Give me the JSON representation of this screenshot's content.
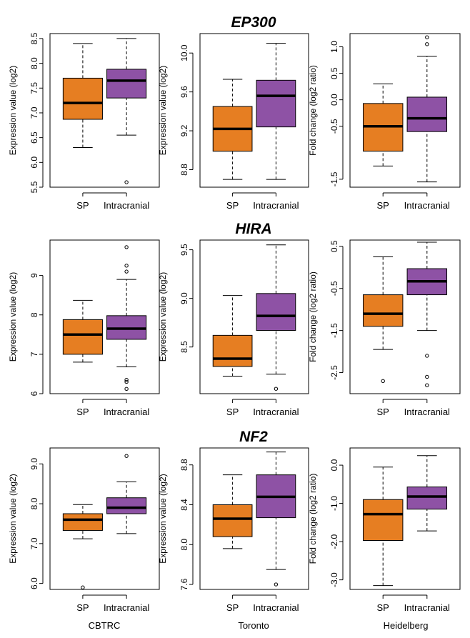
{
  "colors": {
    "sp": "#E67E22",
    "intracranial": "#8E52A5"
  },
  "figure": {
    "row_titles": [
      "EP300",
      "HIRA",
      "NF2"
    ],
    "column_labels": [
      "CBTRC",
      "Toronto",
      "Heidelberg"
    ]
  },
  "chart_data": [
    {
      "type": "box",
      "gene": "EP300",
      "dataset": "CBTRC",
      "ylabel": "Expression value (log2)",
      "ylim": [
        5.5,
        8.6
      ],
      "yticks": [
        "5.5",
        "6.0",
        "6.5",
        "7.0",
        "7.5",
        "8.0",
        "8.5"
      ],
      "categories": [
        "SP",
        "Intracranial"
      ],
      "boxes": [
        {
          "whisker_low": 6.3,
          "q1": 6.87,
          "median": 7.2,
          "q3": 7.7,
          "whisker_high": 8.4,
          "outliers": []
        },
        {
          "whisker_low": 6.55,
          "q1": 7.3,
          "median": 7.65,
          "q3": 7.88,
          "whisker_high": 8.5,
          "outliers": [
            5.6
          ]
        }
      ]
    },
    {
      "type": "box",
      "gene": "EP300",
      "dataset": "Toronto",
      "ylabel": "Expression value (log2)",
      "ylim": [
        8.62,
        10.2
      ],
      "yticks": [
        "8.8",
        "9.2",
        "9.6",
        "10.0"
      ],
      "categories": [
        "SP",
        "Intracranial"
      ],
      "boxes": [
        {
          "whisker_low": 8.7,
          "q1": 8.99,
          "median": 9.22,
          "q3": 9.45,
          "whisker_high": 9.73,
          "outliers": []
        },
        {
          "whisker_low": 8.7,
          "q1": 9.24,
          "median": 9.56,
          "q3": 9.72,
          "whisker_high": 10.1,
          "outliers": []
        }
      ]
    },
    {
      "type": "box",
      "gene": "EP300",
      "dataset": "Heidelberg",
      "ylabel": "Fold change (log2 ratio)",
      "ylim": [
        -1.65,
        1.25
      ],
      "yticks": [
        "-1.5",
        "-0.5",
        "0.0",
        "0.5",
        "1.0"
      ],
      "categories": [
        "SP",
        "Intracranial"
      ],
      "boxes": [
        {
          "whisker_low": -1.25,
          "q1": -0.97,
          "median": -0.5,
          "q3": -0.07,
          "whisker_high": 0.3,
          "outliers": []
        },
        {
          "whisker_low": -1.55,
          "q1": -0.6,
          "median": -0.35,
          "q3": 0.05,
          "whisker_high": 0.82,
          "outliers": [
            1.05,
            1.18
          ]
        }
      ]
    },
    {
      "type": "box",
      "gene": "HIRA",
      "dataset": "CBTRC",
      "ylabel": "Expression value (log2)",
      "ylim": [
        6.0,
        9.9
      ],
      "yticks": [
        "6",
        "7",
        "8",
        "9"
      ],
      "categories": [
        "SP",
        "Intracranial"
      ],
      "boxes": [
        {
          "whisker_low": 6.8,
          "q1": 7.0,
          "median": 7.5,
          "q3": 7.88,
          "whisker_high": 8.37,
          "outliers": []
        },
        {
          "whisker_low": 6.68,
          "q1": 7.38,
          "median": 7.65,
          "q3": 7.98,
          "whisker_high": 8.9,
          "outliers": [
            9.72,
            9.25,
            9.1,
            6.35,
            6.3,
            6.12
          ]
        }
      ]
    },
    {
      "type": "box",
      "gene": "HIRA",
      "dataset": "Toronto",
      "ylabel": "Expression value (log2)",
      "ylim": [
        8.02,
        9.6
      ],
      "yticks": [
        "8.5",
        "9.0",
        "9.5"
      ],
      "categories": [
        "SP",
        "Intracranial"
      ],
      "boxes": [
        {
          "whisker_low": 8.2,
          "q1": 8.3,
          "median": 8.38,
          "q3": 8.62,
          "whisker_high": 9.03,
          "outliers": []
        },
        {
          "whisker_low": 8.22,
          "q1": 8.67,
          "median": 8.82,
          "q3": 9.05,
          "whisker_high": 9.55,
          "outliers": [
            8.07
          ]
        }
      ]
    },
    {
      "type": "box",
      "gene": "HIRA",
      "dataset": "Heidelberg",
      "ylabel": "Fold change (log2 ratio)",
      "ylim": [
        -3.0,
        0.65
      ],
      "yticks": [
        "-2.5",
        "-1.5",
        "-0.5",
        "0.5"
      ],
      "categories": [
        "SP",
        "Intracranial"
      ],
      "boxes": [
        {
          "whisker_low": -1.95,
          "q1": -1.4,
          "median": -1.1,
          "q3": -0.65,
          "whisker_high": 0.25,
          "outliers": [
            -2.7
          ]
        },
        {
          "whisker_low": -1.5,
          "q1": -0.65,
          "median": -0.33,
          "q3": -0.03,
          "whisker_high": 0.6,
          "outliers": [
            -2.1,
            -2.6,
            -2.8
          ]
        }
      ]
    },
    {
      "type": "box",
      "gene": "NF2",
      "dataset": "CBTRC",
      "ylabel": "Expression value (log2)",
      "ylim": [
        5.85,
        9.4
      ],
      "yticks": [
        "6.0",
        "7.0",
        "8.0",
        "9.0"
      ],
      "categories": [
        "SP",
        "Intracranial"
      ],
      "boxes": [
        {
          "whisker_low": 7.12,
          "q1": 7.33,
          "median": 7.6,
          "q3": 7.75,
          "whisker_high": 7.98,
          "outliers": [
            5.9
          ]
        },
        {
          "whisker_low": 7.25,
          "q1": 7.75,
          "median": 7.9,
          "q3": 8.15,
          "whisker_high": 8.55,
          "outliers": [
            9.2
          ]
        }
      ]
    },
    {
      "type": "box",
      "gene": "NF2",
      "dataset": "Toronto",
      "ylabel": "Expression value (log2)",
      "ylim": [
        7.55,
        8.97
      ],
      "yticks": [
        "7.6",
        "8.0",
        "8.4",
        "8.8"
      ],
      "categories": [
        "SP",
        "Intracranial"
      ],
      "boxes": [
        {
          "whisker_low": 7.96,
          "q1": 8.08,
          "median": 8.26,
          "q3": 8.4,
          "whisker_high": 8.7,
          "outliers": []
        },
        {
          "whisker_low": 7.75,
          "q1": 8.27,
          "median": 8.48,
          "q3": 8.7,
          "whisker_high": 8.93,
          "outliers": [
            7.6
          ]
        }
      ]
    },
    {
      "type": "box",
      "gene": "NF2",
      "dataset": "Heidelberg",
      "ylabel": "Fold change (log2 ratio)",
      "ylim": [
        -3.25,
        0.45
      ],
      "yticks": [
        "-3.0",
        "-2.0",
        "-1.0",
        "0.0"
      ],
      "categories": [
        "SP",
        "Intracranial"
      ],
      "boxes": [
        {
          "whisker_low": -3.15,
          "q1": -1.97,
          "median": -1.28,
          "q3": -0.9,
          "whisker_high": -0.05,
          "outliers": []
        },
        {
          "whisker_low": -1.72,
          "q1": -1.15,
          "median": -0.82,
          "q3": -0.57,
          "whisker_high": 0.25,
          "outliers": []
        }
      ]
    }
  ]
}
